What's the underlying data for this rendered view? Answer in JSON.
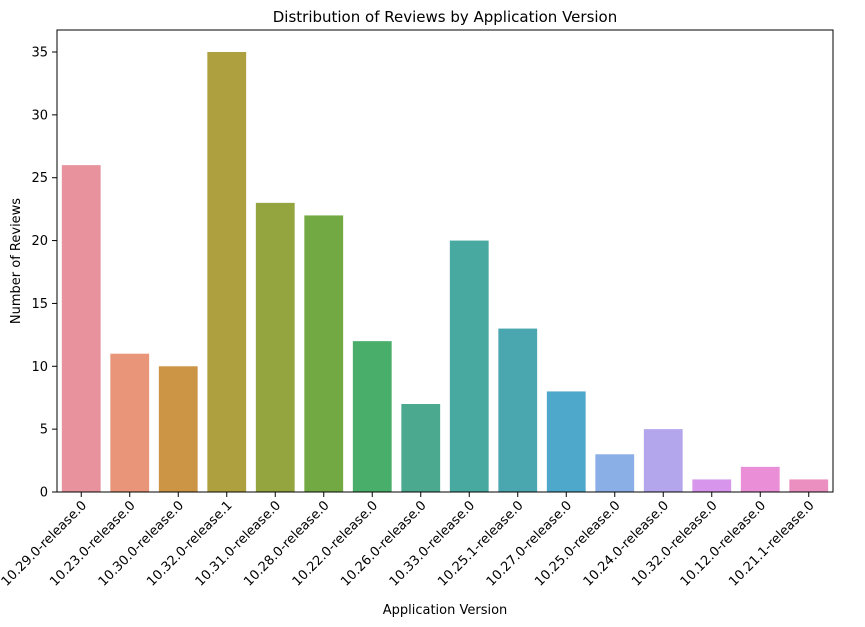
{
  "chart_data": {
    "type": "bar",
    "title": "Distribution of Reviews by Application Version",
    "xlabel": "Application Version",
    "ylabel": "Number of Reviews",
    "ylim": [
      0,
      36.75
    ],
    "yticks": [
      0,
      5,
      10,
      15,
      20,
      25,
      30,
      35
    ],
    "grid": false,
    "legend": "none",
    "categories": [
      "10.29.0-release.0",
      "10.23.0-release.0",
      "10.30.0-release.0",
      "10.32.0-release.1",
      "10.31.0-release.0",
      "10.28.0-release.0",
      "10.22.0-release.0",
      "10.26.0-release.0",
      "10.33.0-release.0",
      "10.25.1-release.0",
      "10.27.0-release.0",
      "10.25.0-release.0",
      "10.24.0-release.0",
      "10.32.0-release.0",
      "10.12.0-release.0",
      "10.21.1-release.0"
    ],
    "values": [
      26,
      11,
      10,
      35,
      23,
      22,
      12,
      7,
      20,
      13,
      8,
      3,
      5,
      1,
      2,
      1
    ],
    "colors": [
      "#e8929e",
      "#e8957a",
      "#cc9545",
      "#aea03e",
      "#94a43e",
      "#73a943",
      "#48ae6a",
      "#4aa98e",
      "#48a9a0",
      "#4aa7b0",
      "#4ea8cc",
      "#8aaee6",
      "#b4a6ec",
      "#d895ec",
      "#ea8ed8",
      "#ea8fc0"
    ]
  }
}
